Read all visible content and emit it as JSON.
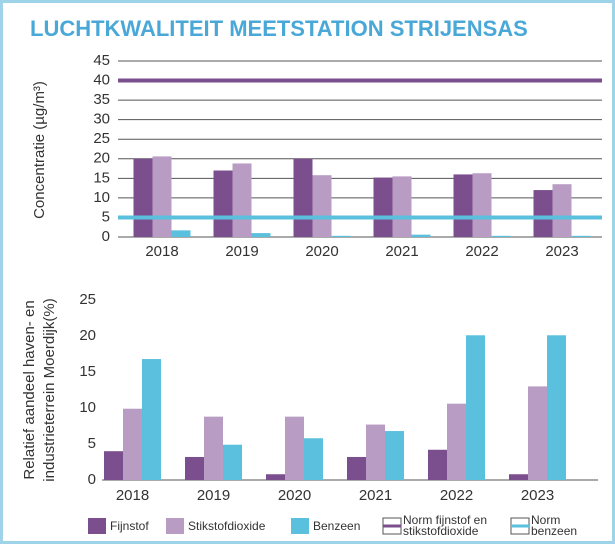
{
  "title": "LUCHTKWALITEIT MEETSTATION STRIJENSAS",
  "chart_data": [
    {
      "type": "bar",
      "ylabel": "Concentratie  (µg/m³)",
      "categories": [
        "2018",
        "2019",
        "2020",
        "2021",
        "2022",
        "2023"
      ],
      "series": [
        {
          "name": "Fijnstof",
          "color": "#7b4f8e",
          "values": [
            20,
            17,
            20,
            15.2,
            16,
            12
          ]
        },
        {
          "name": "Stikstofdioxide",
          "color": "#b89cc3",
          "values": [
            20.6,
            18.8,
            15.8,
            15.5,
            16.3,
            13.5
          ]
        },
        {
          "name": "Benzeen",
          "color": "#5bc0de",
          "values": [
            1.7,
            1,
            0.3,
            0.6,
            0.3,
            0.3
          ]
        }
      ],
      "lines": [
        {
          "name": [
            "Norm fijnstof en",
            "stikstofdioxide"
          ],
          "value": 40,
          "color": "#7b4f8e"
        },
        {
          "name": [
            "Norm",
            "benzeen"
          ],
          "value": 5,
          "color": "#5bc0de"
        }
      ],
      "ylim": [
        0,
        45
      ],
      "yticks": [
        0,
        5,
        10,
        15,
        20,
        25,
        30,
        35,
        40,
        45
      ],
      "grid": true
    },
    {
      "type": "bar",
      "ylabel": [
        "Relatief aandeel haven- en",
        "industrieterrein Moerdijk(%)"
      ],
      "categories": [
        "2018",
        "2019",
        "2020",
        "2021",
        "2022",
        "2023"
      ],
      "series": [
        {
          "color": "#7b4f8e",
          "values": [
            4,
            3.2,
            0.8,
            3.2,
            4.2,
            0.8
          ]
        },
        {
          "color": "#b89cc3",
          "values": [
            9.9,
            8.8,
            8.8,
            7.7,
            10.6,
            13
          ]
        },
        {
          "color": "#5bc0de",
          "values": [
            16.8,
            4.9,
            5.8,
            6.8,
            20.1,
            20.1
          ]
        }
      ],
      "ylim": [
        0,
        25
      ],
      "yticks": [
        0,
        5,
        10,
        15,
        20,
        25
      ],
      "grid": false
    }
  ]
}
